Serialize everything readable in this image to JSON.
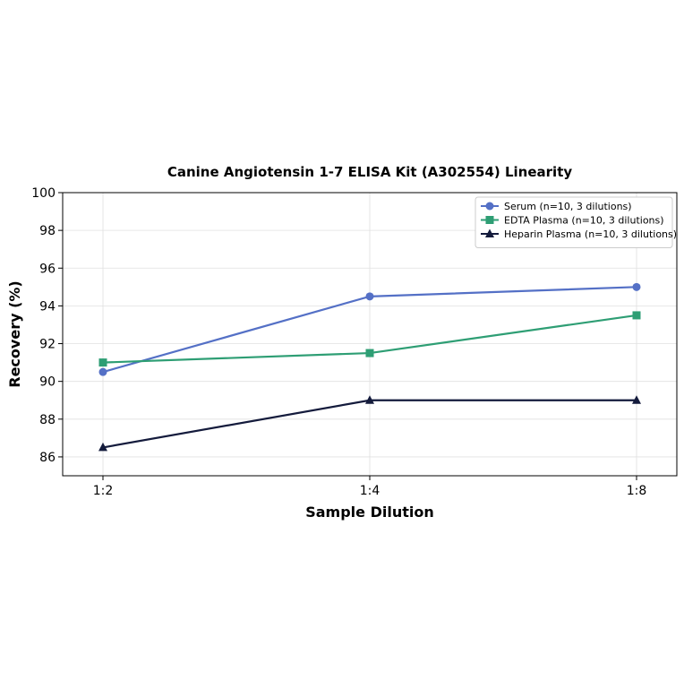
{
  "chart_data": {
    "type": "line",
    "title": "Canine Angiotensin 1-7 ELISA Kit (A302554) Linearity",
    "xlabel": "Sample Dilution",
    "ylabel": "Recovery (%)",
    "categories": [
      "1:2",
      "1:4",
      "1:8"
    ],
    "ylim": [
      85,
      100
    ],
    "yticks": [
      86,
      88,
      90,
      92,
      94,
      96,
      98,
      100
    ],
    "grid": true,
    "legend_position": "top-right",
    "series": [
      {
        "name": "Serum (n=10, 3 dilutions)",
        "values": [
          90.5,
          94.5,
          95.0
        ],
        "color": "#5470c6",
        "marker": "circle"
      },
      {
        "name": "EDTA Plasma (n=10, 3 dilutions)",
        "values": [
          91.0,
          91.5,
          93.5
        ],
        "color": "#2e9e74",
        "marker": "square"
      },
      {
        "name": "Heparin Plasma (n=10, 3 dilutions)",
        "values": [
          86.5,
          89.0,
          89.0
        ],
        "color": "#141b3c",
        "marker": "triangle"
      }
    ]
  }
}
